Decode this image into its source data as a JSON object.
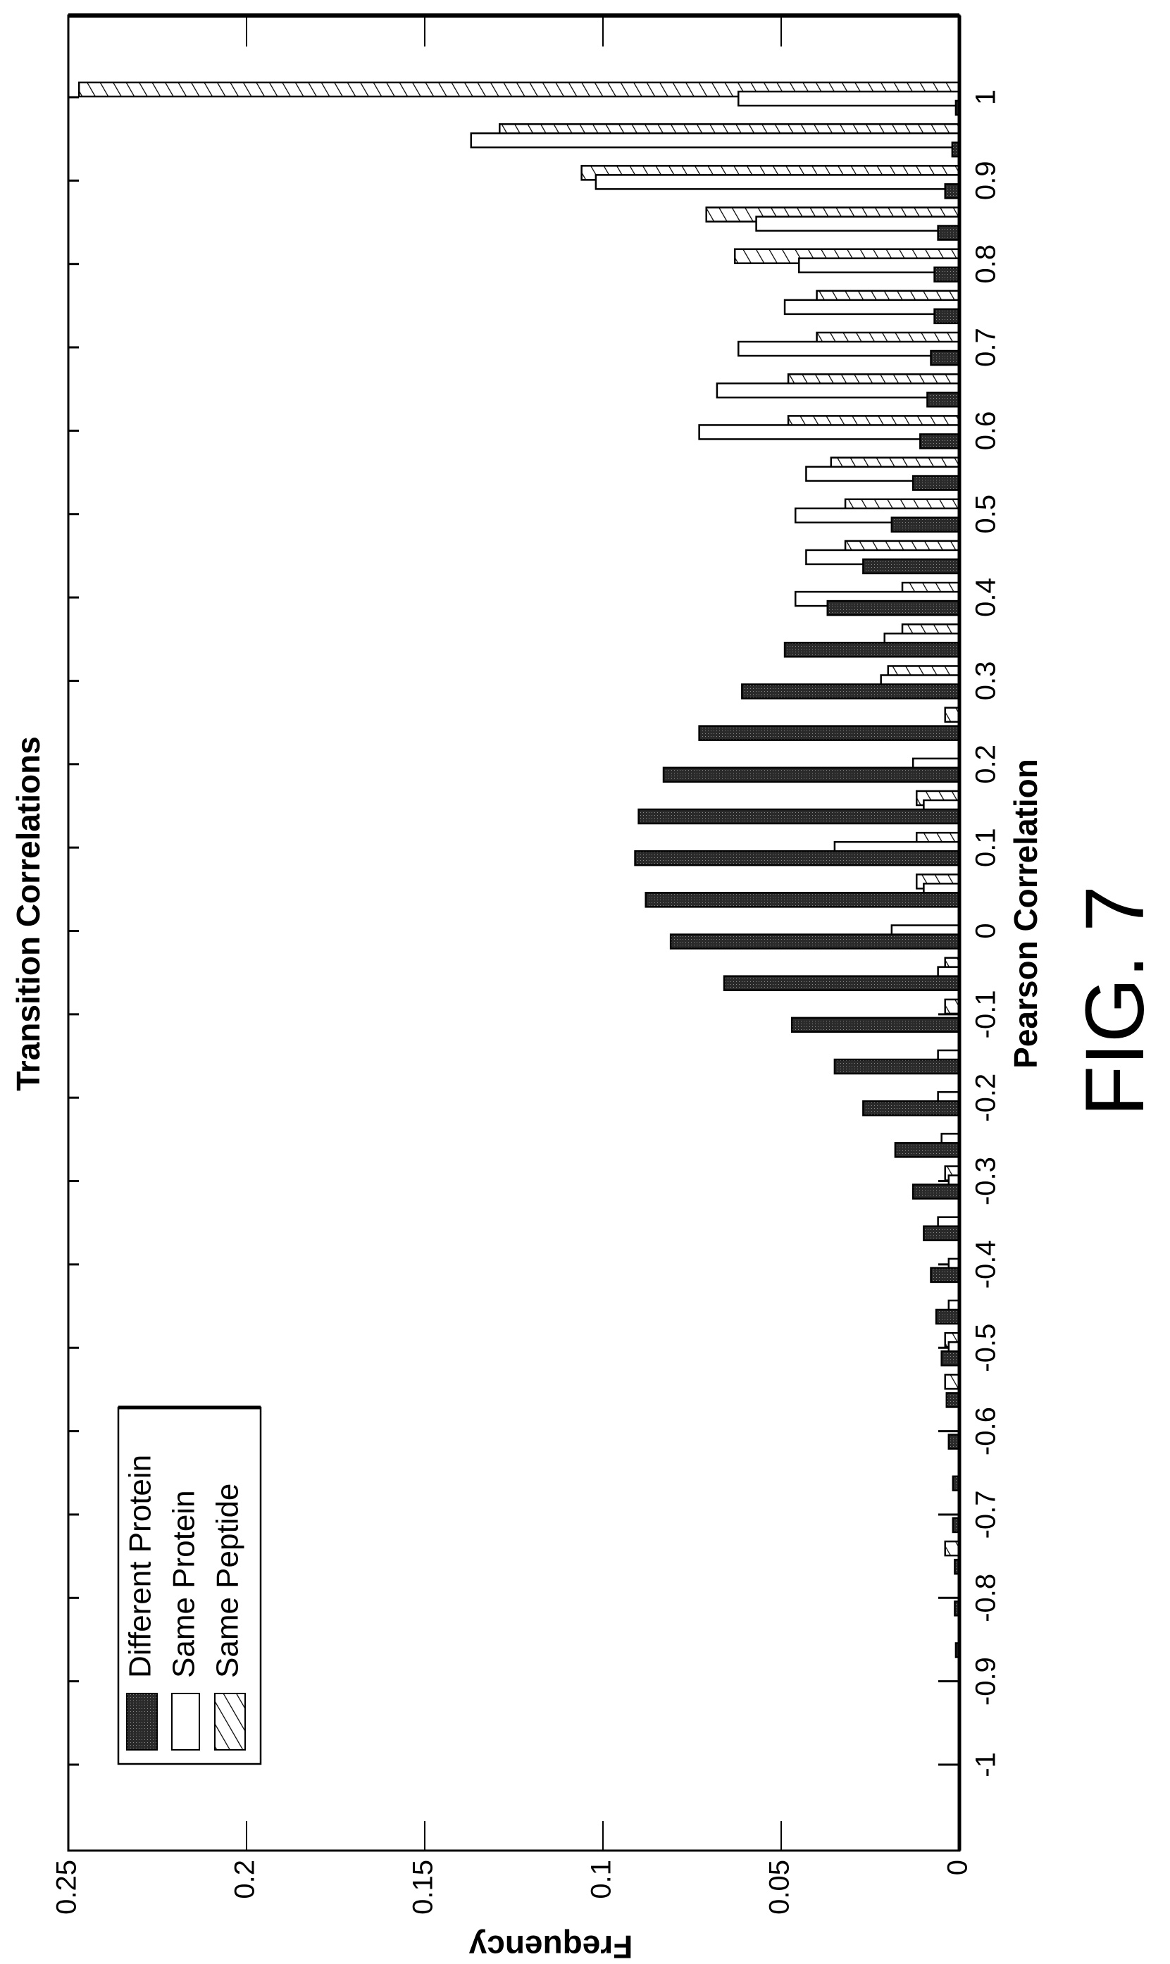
{
  "chart_data": {
    "type": "bar",
    "orientation": "horizontal (figure rotated 90 degrees)",
    "title": "Transition Correlations",
    "xlabel": "Pearson Correlation",
    "ylabel": "Frequency",
    "figure_label": "FIG. 7",
    "x": [
      -1,
      -0.95,
      -0.9,
      -0.85,
      -0.8,
      -0.75,
      -0.7,
      -0.65,
      -0.6,
      -0.55,
      -0.5,
      -0.45,
      -0.4,
      -0.35,
      -0.3,
      -0.25,
      -0.2,
      -0.15,
      -0.1,
      -0.05,
      0,
      0.05,
      0.1,
      0.15,
      0.2,
      0.25,
      0.3,
      0.35,
      0.4,
      0.45,
      0.5,
      0.55,
      0.6,
      0.65,
      0.7,
      0.75,
      0.8,
      0.85,
      0.9,
      0.95,
      1
    ],
    "xlim": [
      -1.1,
      1.1
    ],
    "ylim": [
      0,
      0.25
    ],
    "x_ticks": [
      "-1",
      "-0.9",
      "-0.8",
      "-0.7",
      "-0.6",
      "-0.5",
      "-0.4",
      "-0.3",
      "-0.2",
      "-0.1",
      "0",
      "0.1",
      "0.2",
      "0.3",
      "0.4",
      "0.5",
      "0.6",
      "0.7",
      "0.8",
      "0.9",
      "1"
    ],
    "y_ticks": [
      "0",
      "0.05",
      "0.1",
      "0.15",
      "0.2",
      "0.25"
    ],
    "legend_position": "bottom-left",
    "series": [
      {
        "name": "Different Protein",
        "style": "dark",
        "values": [
          0,
          0,
          0,
          0.001,
          0.0013,
          0.0013,
          0.0018,
          0.0018,
          0.003,
          0.0036,
          0.005,
          0.0065,
          0.008,
          0.01,
          0.013,
          0.018,
          0.027,
          0.035,
          0.047,
          0.066,
          0.081,
          0.088,
          0.091,
          0.09,
          0.083,
          0.073,
          0.061,
          0.049,
          0.037,
          0.027,
          0.019,
          0.013,
          0.011,
          0.009,
          0.008,
          0.007,
          0.007,
          0.006,
          0.004,
          0.002,
          0.001
        ]
      },
      {
        "name": "Same Protein",
        "style": "open",
        "values": [
          0,
          0,
          0,
          0,
          0,
          0,
          0,
          0,
          0,
          0,
          0.003,
          0.003,
          0.003,
          0.006,
          0.003,
          0.005,
          0.006,
          0.006,
          0,
          0.006,
          0.019,
          0.01,
          0.035,
          0.01,
          0.013,
          0,
          0.022,
          0.021,
          0.046,
          0.043,
          0.046,
          0.043,
          0.073,
          0.068,
          0.062,
          0.049,
          0.045,
          0.057,
          0.102,
          0.137,
          0.062
        ]
      },
      {
        "name": "Same Peptide",
        "style": "hatched",
        "values": [
          0,
          0,
          0,
          0,
          0,
          0.004,
          0,
          0,
          0,
          0.004,
          0.004,
          0,
          0,
          0,
          0.004,
          0,
          0,
          0,
          0.004,
          0.004,
          0,
          0.012,
          0.012,
          0.012,
          0,
          0.004,
          0.02,
          0.016,
          0.016,
          0.032,
          0.032,
          0.036,
          0.048,
          0.048,
          0.04,
          0.04,
          0.063,
          0.071,
          0.106,
          0.129,
          0.247
        ]
      }
    ],
    "colors": {
      "dark": "#333333",
      "open": "#ffffff",
      "line": "#000000"
    }
  }
}
